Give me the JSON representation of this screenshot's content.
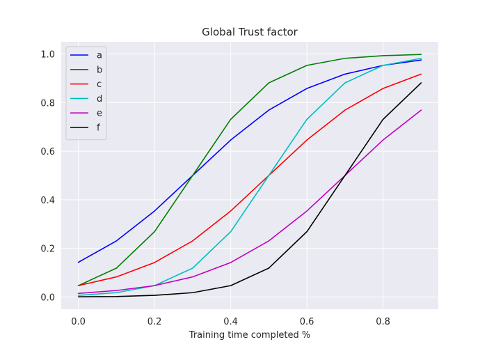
{
  "chart_data": {
    "type": "line",
    "title": "Global Trust factor",
    "xlabel": "Training time completed %",
    "ylabel": "",
    "xlim": [
      -0.045,
      0.945
    ],
    "ylim": [
      -0.05,
      1.05
    ],
    "grid": true,
    "legend_position": "top-left",
    "x": [
      0.0,
      0.1,
      0.2,
      0.3,
      0.4,
      0.5,
      0.6,
      0.7,
      0.8,
      0.9
    ],
    "xticks": [
      0.0,
      0.2,
      0.4,
      0.6,
      0.8
    ],
    "xtick_labels": [
      "0.0",
      "0.2",
      "0.4",
      "0.6",
      "0.8"
    ],
    "yticks": [
      0.0,
      0.2,
      0.4,
      0.6,
      0.8,
      1.0
    ],
    "ytick_labels": [
      "0.0",
      "0.2",
      "0.4",
      "0.6",
      "0.8",
      "1.0"
    ],
    "series": [
      {
        "name": "a",
        "color": "#0000ff",
        "values": [
          0.143,
          0.231,
          0.354,
          0.5,
          0.646,
          0.769,
          0.858,
          0.917,
          0.953,
          0.975
        ]
      },
      {
        "name": "b",
        "color": "#008000",
        "values": [
          0.047,
          0.119,
          0.269,
          0.5,
          0.731,
          0.881,
          0.953,
          0.982,
          0.993,
          0.998
        ]
      },
      {
        "name": "c",
        "color": "#ff0000",
        "values": [
          0.047,
          0.083,
          0.142,
          0.231,
          0.354,
          0.5,
          0.646,
          0.769,
          0.858,
          0.917
        ]
      },
      {
        "name": "d",
        "color": "#00bfbf",
        "values": [
          0.007,
          0.018,
          0.047,
          0.119,
          0.269,
          0.5,
          0.731,
          0.881,
          0.953,
          0.982
        ]
      },
      {
        "name": "e",
        "color": "#bf00bf",
        "values": [
          0.015,
          0.027,
          0.047,
          0.083,
          0.142,
          0.231,
          0.354,
          0.5,
          0.646,
          0.769
        ]
      },
      {
        "name": "f",
        "color": "#000000",
        "values": [
          0.001,
          0.002,
          0.007,
          0.018,
          0.047,
          0.119,
          0.269,
          0.5,
          0.731,
          0.881
        ]
      }
    ]
  }
}
